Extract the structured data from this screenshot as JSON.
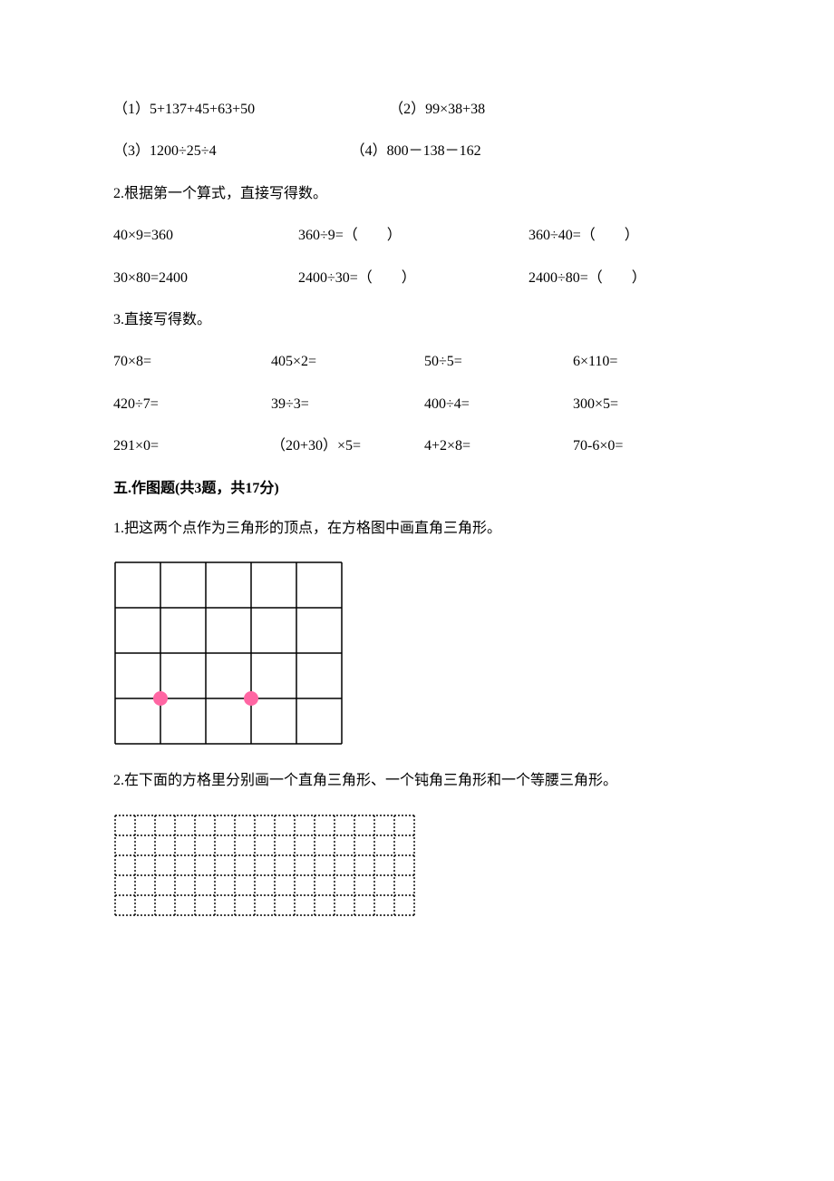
{
  "q1": {
    "a": "（1）5+137+45+63+50",
    "b": "（2）99×38+38",
    "c": "（3）1200÷25÷4",
    "d": "（4）800－138－162"
  },
  "q2": {
    "lead": "2.根据第一个算式，直接写得数。",
    "r1a": "40×9=360",
    "r1b": "360÷9=（　　）",
    "r1c": "360÷40=（　　）",
    "r2a": "30×80=2400",
    "r2b": "2400÷30=（　　）",
    "r2c": "2400÷80=（　　）"
  },
  "q3": {
    "lead": "3.直接写得数。",
    "r1": [
      "70×8=",
      "405×2=",
      "50÷5=",
      "6×110="
    ],
    "r2": [
      "420÷7=",
      "39÷3=",
      "400÷4=",
      "300×5="
    ],
    "r3": [
      "291×0=",
      "（20+30）×5=",
      "4+2×8=",
      "70-6×0="
    ]
  },
  "sec5_heading": "五.作图题(共3题，共17分)",
  "p1": "1.把这两个点作为三角形的顶点，在方格图中画直角三角形。",
  "p2": "2.在下面的方格里分别画一个直角三角形、一个钝角三角形和一个等腰三角形。",
  "grid1": {
    "cols": 5,
    "rows": 4,
    "cell": 50,
    "stroke": "#000000",
    "stroke_width": 1.5,
    "dot_color": "#ff66a3",
    "dot_r": 8,
    "dots": [
      {
        "cx_cell": 1,
        "cy_cell": 3
      },
      {
        "cx_cell": 3,
        "cy_cell": 3
      }
    ]
  },
  "grid2": {
    "cols": 15,
    "rows": 5,
    "cell": 22,
    "stroke": "#000000",
    "stroke_width": 1.4,
    "dash": "2 2"
  }
}
